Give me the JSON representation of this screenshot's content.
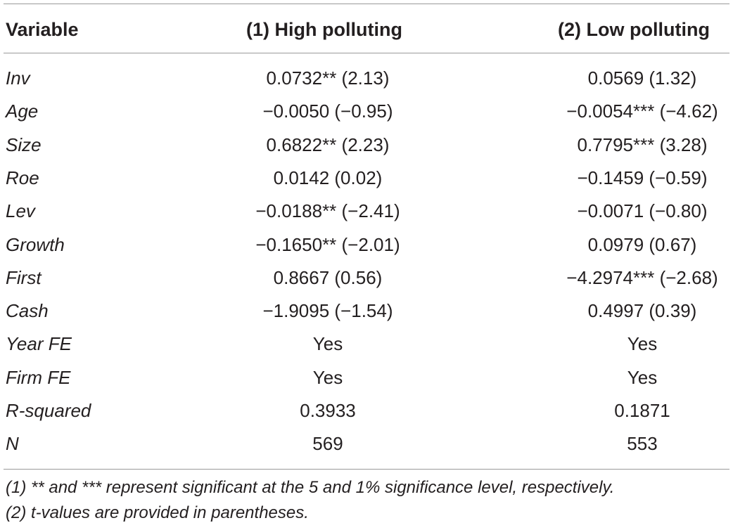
{
  "table": {
    "headers": [
      "Variable",
      "(1) High polluting",
      "(2) Low polluting"
    ],
    "rows": [
      {
        "variable": "Inv",
        "high": "0.0732** (2.13)",
        "low": "0.0569 (1.32)"
      },
      {
        "variable": "Age",
        "high": "−0.0050 (−0.95)",
        "low": "−0.0054*** (−4.62)"
      },
      {
        "variable": "Size",
        "high": "0.6822** (2.23)",
        "low": "0.7795*** (3.28)"
      },
      {
        "variable": "Roe",
        "high": "0.0142 (0.02)",
        "low": "−0.1459 (−0.59)"
      },
      {
        "variable": "Lev",
        "high": "−0.0188** (−2.41)",
        "low": "−0.0071 (−0.80)"
      },
      {
        "variable": "Growth",
        "high": "−0.1650** (−2.01)",
        "low": "0.0979 (0.67)"
      },
      {
        "variable": "First",
        "high": "0.8667 (0.56)",
        "low": "−4.2974*** (−2.68)"
      },
      {
        "variable": "Cash",
        "high": "−1.9095 (−1.54)",
        "low": "0.4997 (0.39)"
      },
      {
        "variable": "Year FE",
        "high": "Yes",
        "low": "Yes"
      },
      {
        "variable": "Firm FE",
        "high": "Yes",
        "low": "Yes"
      },
      {
        "variable": "R-squared",
        "high": "0.3933",
        "low": "0.1871"
      },
      {
        "variable": "N",
        "high": "569",
        "low": "553"
      }
    ],
    "notes": [
      "(1) ** and *** represent significant at the 5 and 1% significance level, respectively.",
      "(2) t-values are provided in parentheses."
    ]
  }
}
